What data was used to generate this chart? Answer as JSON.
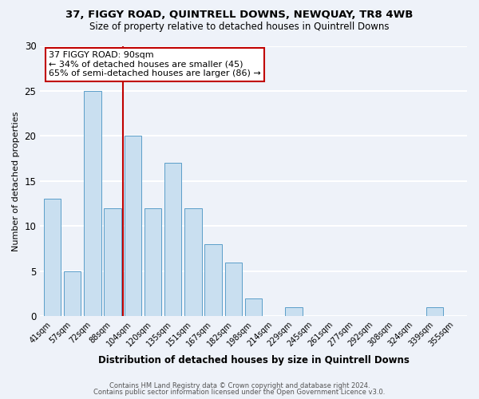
{
  "title": "37, FIGGY ROAD, QUINTRELL DOWNS, NEWQUAY, TR8 4WB",
  "subtitle": "Size of property relative to detached houses in Quintrell Downs",
  "xlabel": "Distribution of detached houses by size in Quintrell Downs",
  "ylabel": "Number of detached properties",
  "bar_labels": [
    "41sqm",
    "57sqm",
    "72sqm",
    "88sqm",
    "104sqm",
    "120sqm",
    "135sqm",
    "151sqm",
    "167sqm",
    "182sqm",
    "198sqm",
    "214sqm",
    "229sqm",
    "245sqm",
    "261sqm",
    "277sqm",
    "292sqm",
    "308sqm",
    "324sqm",
    "339sqm",
    "355sqm"
  ],
  "bar_values": [
    13,
    5,
    25,
    12,
    20,
    12,
    17,
    12,
    8,
    6,
    2,
    0,
    1,
    0,
    0,
    0,
    0,
    0,
    0,
    1,
    0
  ],
  "bar_color": "#c9dff0",
  "bar_edge_color": "#5a9ec9",
  "annotation_text": "37 FIGGY ROAD: 90sqm\n← 34% of detached houses are smaller (45)\n65% of semi-detached houses are larger (86) →",
  "annotation_box_color": "white",
  "annotation_box_edge_color": "#c00000",
  "property_line_color": "#c00000",
  "ylim": [
    0,
    30
  ],
  "yticks": [
    0,
    5,
    10,
    15,
    20,
    25,
    30
  ],
  "footer_line1": "Contains HM Land Registry data © Crown copyright and database right 2024.",
  "footer_line2": "Contains public sector information licensed under the Open Government Licence v3.0.",
  "background_color": "#eef2f9",
  "grid_color": "white"
}
